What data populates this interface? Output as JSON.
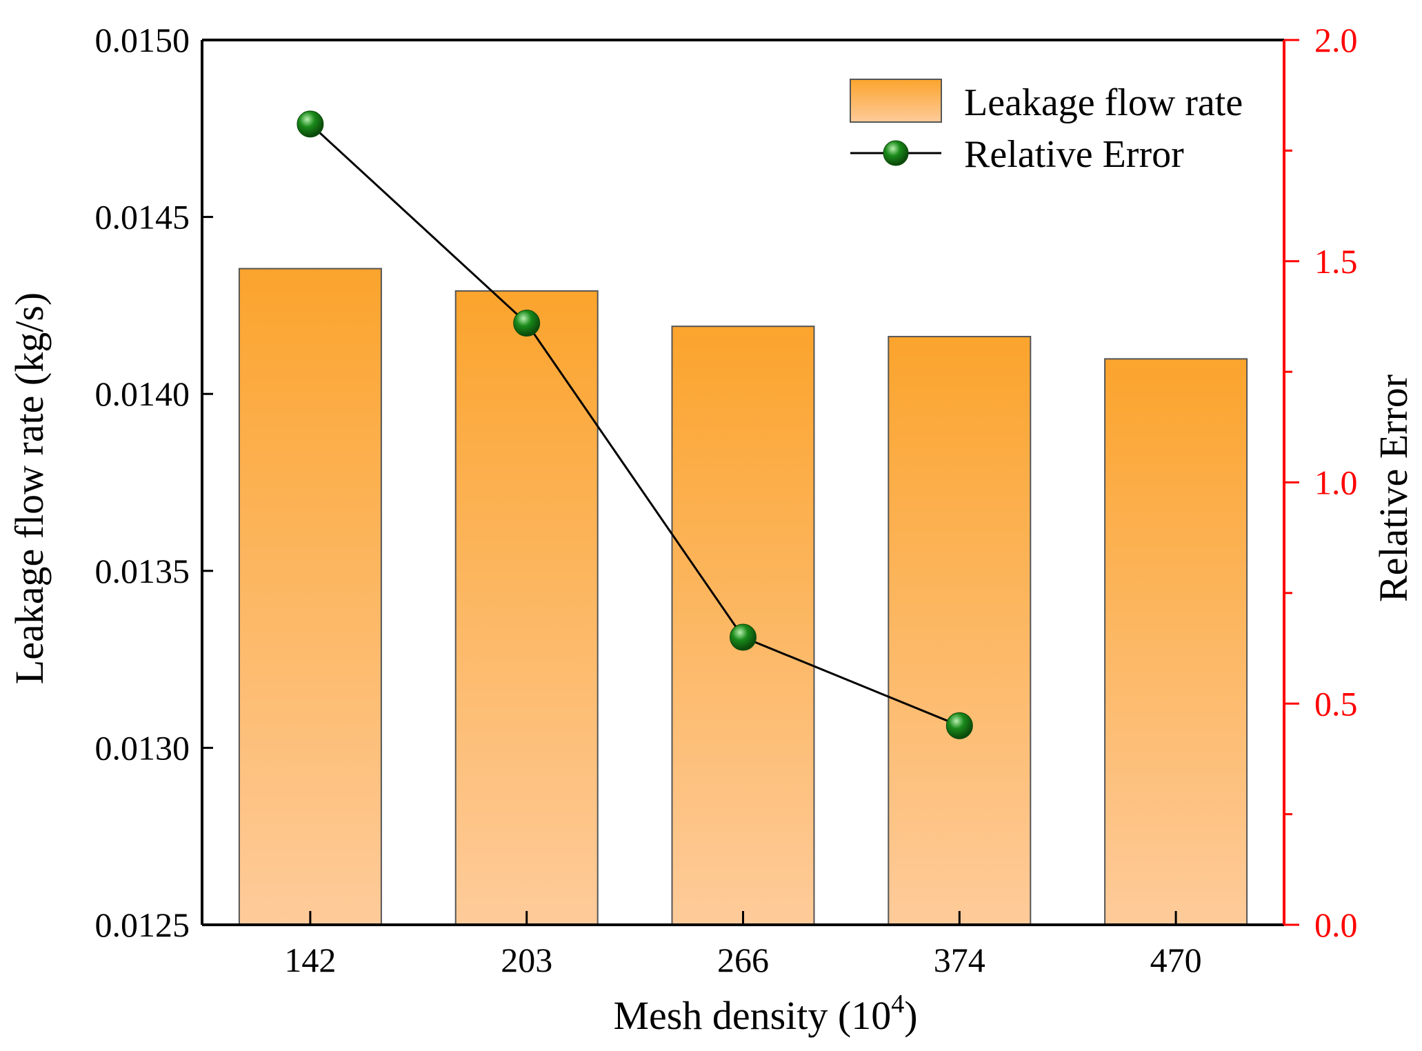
{
  "chart_data": {
    "type": "bar",
    "categories": [
      "142",
      "203",
      "266",
      "374",
      "470"
    ],
    "series": [
      {
        "name": "Leakage flow rate",
        "axis": "left",
        "kind": "bar",
        "values": [
          0.014354,
          0.014291,
          0.014191,
          0.014162,
          0.014099
        ]
      },
      {
        "name": "Relative Error",
        "axis": "right",
        "kind": "line",
        "values": [
          1.81,
          1.36,
          0.65,
          0.45,
          null
        ]
      }
    ],
    "xlabel": {
      "main": "Mesh density (10",
      "sup": "4",
      "close": ")"
    },
    "ylabel_left": "Leakage flow rate (kg/s)",
    "ylabel_right": "Relative Error",
    "ylim_left": [
      0.0125,
      0.015
    ],
    "ylim_right": [
      0,
      2.0
    ],
    "yticks_left": [
      "0.0125",
      "0.0130",
      "0.0135",
      "0.0140",
      "0.0145",
      "0.0150"
    ],
    "yticks_right": [
      "0.0",
      "0.5",
      "1.0",
      "1.5",
      "2.0"
    ],
    "legend": {
      "position": "top-right",
      "entries": [
        "Leakage flow rate",
        "Relative Error"
      ]
    },
    "colors": {
      "bar_top": "#FBA42D",
      "bar_bottom": "#FECB9A",
      "bar_edge": "#555555",
      "line": "#000000",
      "marker": "#1A8A1A",
      "marker_highlight": "#B8F0B0",
      "right_axis": "#FF0000"
    },
    "grid": false
  }
}
